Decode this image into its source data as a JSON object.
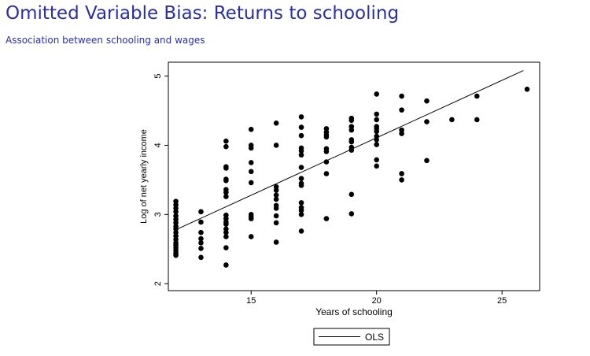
{
  "slide": {
    "title": "Omitted Variable Bias: Returns to schooling",
    "subtitle": "Association between schooling and wages"
  },
  "chart_data": {
    "type": "scatter",
    "xlabel": "Years of schooling",
    "ylabel": "Log of net yearly income",
    "xlim": [
      11.7,
      26.5
    ],
    "ylim": [
      1.9,
      5.2
    ],
    "xticks": [
      15,
      20,
      25
    ],
    "yticks": [
      2,
      3,
      4,
      5
    ],
    "grid": false,
    "legend": {
      "placement": "bottom-center",
      "entries": [
        "OLS"
      ]
    },
    "colors": {
      "points": "#000000",
      "line": "#000000"
    },
    "series": [
      {
        "name": "",
        "type": "scatter",
        "points": [
          [
            12,
            3.19
          ],
          [
            12,
            3.14
          ],
          [
            12,
            3.09
          ],
          [
            12,
            3.04
          ],
          [
            12,
            2.98
          ],
          [
            12,
            2.93
          ],
          [
            12,
            2.88
          ],
          [
            12,
            2.83
          ],
          [
            12,
            2.79
          ],
          [
            12,
            2.74
          ],
          [
            12,
            2.69
          ],
          [
            12,
            2.64
          ],
          [
            12,
            2.59
          ],
          [
            12,
            2.56
          ],
          [
            12,
            2.52
          ],
          [
            12,
            2.48
          ],
          [
            12,
            2.44
          ],
          [
            12,
            2.41
          ],
          [
            13,
            3.04
          ],
          [
            13,
            2.89
          ],
          [
            13,
            2.74
          ],
          [
            13,
            2.65
          ],
          [
            13,
            2.59
          ],
          [
            13,
            2.51
          ],
          [
            13,
            2.38
          ],
          [
            14,
            4.06
          ],
          [
            14,
            3.98
          ],
          [
            14,
            3.69
          ],
          [
            14,
            3.67
          ],
          [
            14,
            3.51
          ],
          [
            14,
            3.49
          ],
          [
            14,
            3.36
          ],
          [
            14,
            3.32
          ],
          [
            14,
            3.26
          ],
          [
            14,
            2.99
          ],
          [
            14,
            2.94
          ],
          [
            14,
            2.89
          ],
          [
            14,
            2.86
          ],
          [
            14,
            2.79
          ],
          [
            14,
            2.74
          ],
          [
            14,
            2.68
          ],
          [
            14,
            2.52
          ],
          [
            14,
            2.27
          ],
          [
            15,
            4.23
          ],
          [
            15,
            4.0
          ],
          [
            15,
            3.96
          ],
          [
            15,
            3.75
          ],
          [
            15,
            3.62
          ],
          [
            15,
            3.46
          ],
          [
            15,
            3.0
          ],
          [
            15,
            2.97
          ],
          [
            15,
            2.94
          ],
          [
            15,
            2.68
          ],
          [
            16,
            4.32
          ],
          [
            16,
            4.0
          ],
          [
            16,
            3.4
          ],
          [
            16,
            3.35
          ],
          [
            16,
            3.28
          ],
          [
            16,
            3.22
          ],
          [
            16,
            3.13
          ],
          [
            16,
            3.09
          ],
          [
            16,
            2.98
          ],
          [
            16,
            2.88
          ],
          [
            16,
            2.6
          ],
          [
            17,
            4.41
          ],
          [
            17,
            4.26
          ],
          [
            17,
            4.14
          ],
          [
            17,
            3.96
          ],
          [
            17,
            3.92
          ],
          [
            17,
            3.86
          ],
          [
            17,
            3.68
          ],
          [
            17,
            3.52
          ],
          [
            17,
            3.45
          ],
          [
            17,
            3.42
          ],
          [
            17,
            3.17
          ],
          [
            17,
            3.1
          ],
          [
            17,
            3.06
          ],
          [
            17,
            3.0
          ],
          [
            17,
            2.76
          ],
          [
            18,
            4.24
          ],
          [
            18,
            4.19
          ],
          [
            18,
            4.15
          ],
          [
            18,
            4.12
          ],
          [
            18,
            3.95
          ],
          [
            18,
            3.91
          ],
          [
            18,
            3.76
          ],
          [
            18,
            3.59
          ],
          [
            18,
            2.94
          ],
          [
            19,
            4.39
          ],
          [
            19,
            4.36
          ],
          [
            19,
            4.27
          ],
          [
            19,
            4.22
          ],
          [
            19,
            4.08
          ],
          [
            19,
            4.05
          ],
          [
            19,
            3.97
          ],
          [
            19,
            3.93
          ],
          [
            19,
            3.29
          ],
          [
            19,
            3.01
          ],
          [
            20,
            4.74
          ],
          [
            20,
            4.45
          ],
          [
            20,
            4.37
          ],
          [
            20,
            4.27
          ],
          [
            20,
            4.24
          ],
          [
            20,
            4.2
          ],
          [
            20,
            4.13
          ],
          [
            20,
            4.08
          ],
          [
            20,
            4.01
          ],
          [
            20,
            3.79
          ],
          [
            20,
            3.7
          ],
          [
            21,
            4.71
          ],
          [
            21,
            4.51
          ],
          [
            21,
            4.22
          ],
          [
            21,
            4.17
          ],
          [
            21,
            3.59
          ],
          [
            21,
            3.5
          ],
          [
            22,
            4.64
          ],
          [
            22,
            4.34
          ],
          [
            22,
            3.78
          ],
          [
            23,
            4.37
          ],
          [
            24,
            4.71
          ],
          [
            24,
            4.37
          ],
          [
            26,
            4.81
          ]
        ]
      },
      {
        "name": "OLS",
        "type": "line",
        "points": [
          [
            12,
            2.78
          ],
          [
            25.85,
            5.08
          ]
        ]
      }
    ]
  }
}
